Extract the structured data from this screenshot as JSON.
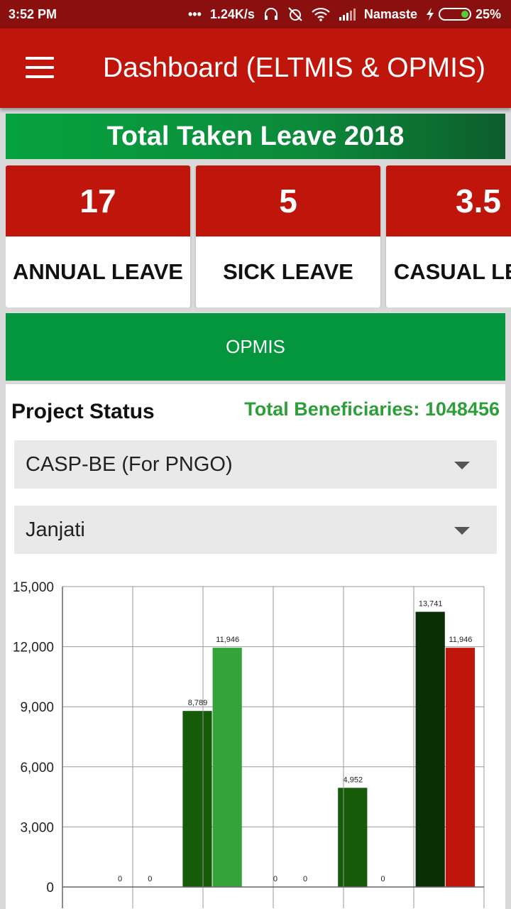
{
  "status_bar": {
    "time": "3:52 PM",
    "dots": "•••",
    "speed": "1.24K/s",
    "carrier": "Namaste",
    "battery": "25%",
    "battery_level": 0.25
  },
  "app_bar": {
    "title": "Dashboard (ELTMIS & OPMIS)",
    "menu_icon": "hamburger-menu-icon"
  },
  "leave": {
    "banner": "Total Taken Leave 2018",
    "cards": [
      {
        "value": "17",
        "label": "ANNUAL LEAVE"
      },
      {
        "value": "5",
        "label": "SICK LEAVE"
      },
      {
        "value": "3.5",
        "label": "CASUAL LEAVE"
      }
    ]
  },
  "opmis_button": "OPMIS",
  "project": {
    "title": "Project Status",
    "total": "Total Beneficiaries: 1048456",
    "project_select": "CASP-BE (For PNGO)",
    "group_select": "Janjati"
  },
  "colors": {
    "primary_red": "#c0150b",
    "status_red": "#8a0f0f",
    "green": "#03963d",
    "accent_green": "#2e9e38"
  },
  "chart_data": {
    "type": "bar",
    "ylim": [
      0,
      15000
    ],
    "yticks": [
      "0",
      "3,000",
      "6,000",
      "9,000",
      "12,000",
      "15,000"
    ],
    "groups": [
      {
        "bars": [
          {
            "value": 0,
            "label": "0",
            "color": "#155b08"
          },
          {
            "value": 0,
            "label": "0",
            "color": "#34a33a"
          }
        ]
      },
      {
        "bars": [
          {
            "value": 8789,
            "label": "8,789",
            "color": "#155b08"
          },
          {
            "value": 11946,
            "label": "11,946",
            "color": "#34a33a"
          }
        ]
      },
      {
        "bars": [
          {
            "value": 0,
            "label": "0",
            "color": "#155b08"
          },
          {
            "value": 0,
            "label": "0",
            "color": "#34a33a"
          }
        ]
      },
      {
        "bars": [
          {
            "value": 4952,
            "label": "4,952",
            "color": "#155b08"
          },
          {
            "value": 0,
            "label": "0",
            "color": "#34a33a"
          }
        ]
      },
      {
        "bars": [
          {
            "value": 13741,
            "label": "13,741",
            "color": "#0a2e05"
          },
          {
            "value": 11946,
            "label": "11,946",
            "color": "#c0150b"
          }
        ]
      }
    ]
  }
}
